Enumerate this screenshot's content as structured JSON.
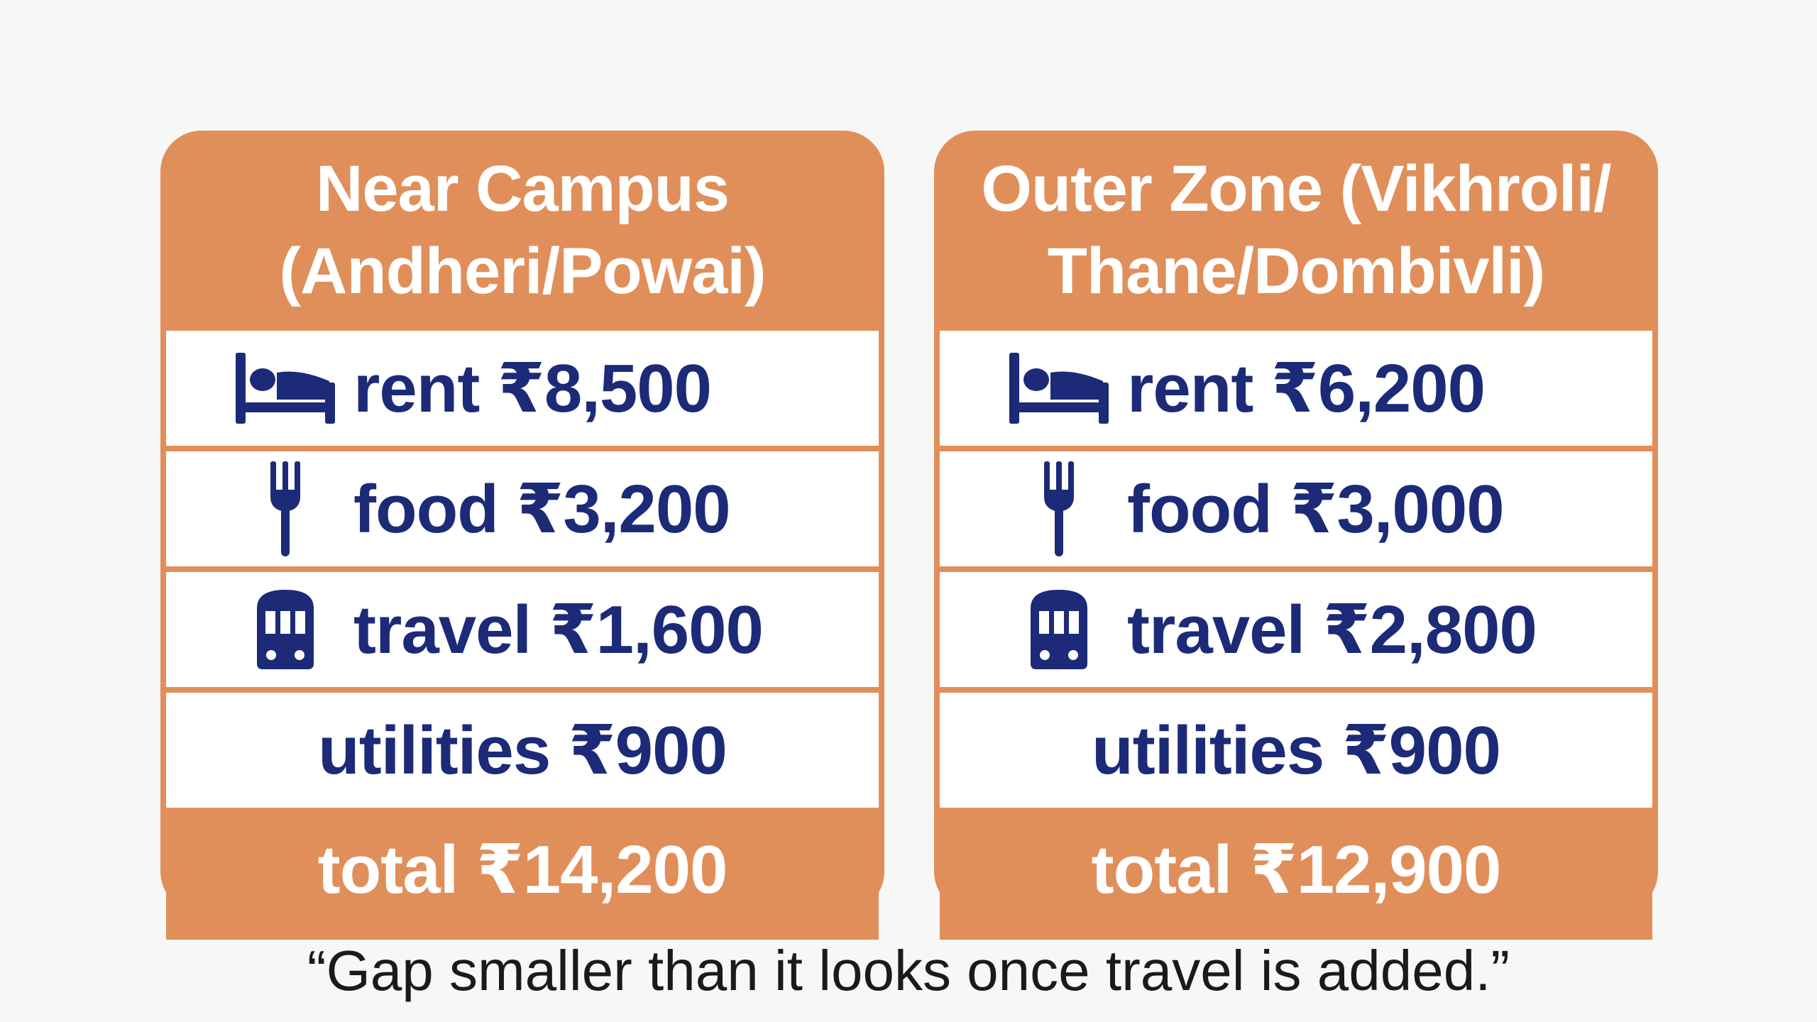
{
  "colors": {
    "card": "#e08f5a",
    "row_background": "#ffffff",
    "row_text": "#1c2a78",
    "header_text": "#ffffff",
    "caption_text": "#1a1a1a",
    "page_background": "#f7f7f6"
  },
  "cards": [
    {
      "title_line1": "Near Campus",
      "title_line2": "(Andheri/Powai)",
      "rows": [
        {
          "icon": "bed-icon",
          "text": "rent ₹8,500"
        },
        {
          "icon": "fork-icon",
          "text": "food ₹3,200"
        },
        {
          "icon": "train-icon",
          "text": "travel ₹1,600"
        },
        {
          "icon": "",
          "text": "utilities ₹900"
        }
      ],
      "total": "total ₹14,200"
    },
    {
      "title_line1": "Outer Zone (Vikhroli/",
      "title_line2": "Thane/Dombivli)",
      "rows": [
        {
          "icon": "bed-icon",
          "text": "rent ₹6,200"
        },
        {
          "icon": "fork-icon",
          "text": "food ₹3,000"
        },
        {
          "icon": "train-icon",
          "text": "travel ₹2,800"
        },
        {
          "icon": "",
          "text": "utilities ₹900"
        }
      ],
      "total": "total ₹12,900"
    }
  ],
  "caption": "“Gap smaller than it looks once travel is added.”"
}
